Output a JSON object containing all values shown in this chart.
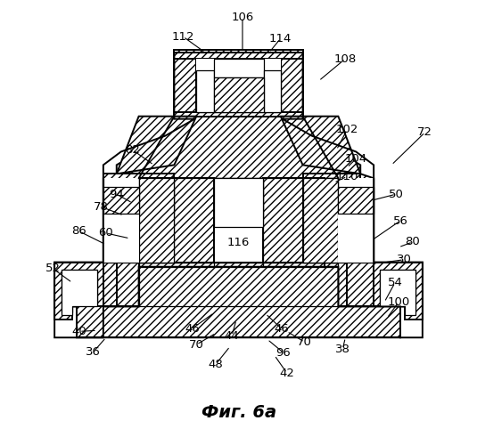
{
  "title": "Фиг. 6а",
  "background_color": "#ffffff",
  "figsize": [
    5.35,
    5.0
  ],
  "dpi": 100,
  "hatch": "////",
  "ec": "#000000",
  "fc_hatch": "#ffffff",
  "lw_main": 1.4,
  "lw_thin": 0.9,
  "label_fs": 9.5
}
